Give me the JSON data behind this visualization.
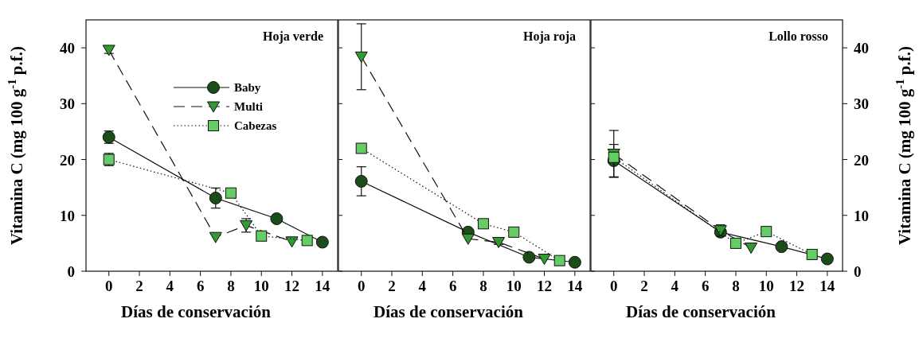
{
  "chart_data": [
    {
      "type": "line",
      "title": "Hoja verde",
      "xlabel": "Días de conservación",
      "ylabel": "Vitamina C (mg 100 g$^{-1}$ p.f.)",
      "xlim": [
        -1.5,
        15
      ],
      "xticks": [
        0,
        2,
        4,
        6,
        8,
        10,
        12,
        14
      ],
      "ylim": [
        0,
        45
      ],
      "yticks": [
        0,
        10,
        20,
        30,
        40
      ],
      "legend": "top",
      "series": [
        {
          "name": "Baby",
          "color": "#1b4d1b",
          "marker": "circle",
          "line_style": "solid",
          "x": [
            0,
            7,
            11,
            14
          ],
          "values": [
            24.0,
            13.1,
            9.4,
            5.2
          ],
          "errors": [
            1.1,
            1.8,
            null,
            null
          ]
        },
        {
          "name": "Multi",
          "color": "#339933",
          "marker": "triangle",
          "line_style": "dashed",
          "x": [
            0,
            7,
            9,
            12
          ],
          "values": [
            39.6,
            6.1,
            8.2,
            5.3
          ],
          "errors": [
            0.6,
            null,
            1.2,
            null
          ]
        },
        {
          "name": "Cabezas",
          "color": "#66cc66",
          "marker": "square",
          "line_style": "dotted",
          "x": [
            0,
            8,
            10,
            13
          ],
          "values": [
            20.0,
            14.0,
            6.3,
            5.5
          ],
          "errors": [
            1.1,
            0.6,
            null,
            0.6
          ]
        }
      ]
    },
    {
      "type": "line",
      "title": "Hoja roja",
      "xlabel": "Días de conservación",
      "xlim": [
        -1.5,
        15
      ],
      "xticks": [
        0,
        2,
        4,
        6,
        8,
        10,
        12,
        14
      ],
      "ylim": [
        0,
        45
      ],
      "yticks": [
        0,
        10,
        20,
        30,
        40
      ],
      "tick_labels": "x",
      "series": [
        {
          "color": "#1b4d1b",
          "marker": "circle",
          "line_style": "solid",
          "x": [
            0,
            7,
            11,
            14
          ],
          "values": [
            16.1,
            7.0,
            2.5,
            1.6
          ],
          "errors": [
            2.6,
            null,
            null,
            null
          ]
        },
        {
          "color": "#339933",
          "marker": "triangle",
          "line_style": "dashed",
          "x": [
            0,
            7,
            9,
            12
          ],
          "values": [
            38.4,
            5.8,
            5.2,
            2.2
          ],
          "errors": [
            5.9,
            null,
            0.4,
            null
          ]
        },
        {
          "color": "#66cc66",
          "marker": "square",
          "line_style": "dotted",
          "x": [
            0,
            8,
            10,
            13
          ],
          "values": [
            22.0,
            8.5,
            7.0,
            1.9
          ]
        }
      ]
    },
    {
      "type": "line",
      "title": "Lollo rosso",
      "xlabel": "Días de conservación",
      "y2label": "Vitamina C (mg 100 g$^{-1}$ p.f.)",
      "xlim": [
        -1.5,
        15
      ],
      "xticks": [
        0,
        2,
        4,
        6,
        8,
        10,
        12,
        14
      ],
      "y2lim": [
        0,
        45
      ],
      "y2ticks": [
        0,
        10,
        20,
        30,
        40
      ],
      "series": [
        {
          "color": "#1b4d1b",
          "marker": "circle",
          "line_style": "solid",
          "axis": "y2",
          "x": [
            0,
            7,
            11,
            14
          ],
          "values": [
            19.8,
            7.0,
            4.4,
            2.2
          ],
          "errors": [
            2.9,
            0.5,
            null,
            null
          ]
        },
        {
          "color": "#339933",
          "marker": "triangle",
          "line_style": "dashed",
          "axis": "y2",
          "x": [
            0,
            7,
            9
          ],
          "values": [
            21.0,
            7.3,
            4.2
          ],
          "errors": [
            4.2,
            1.0,
            null
          ]
        },
        {
          "color": "#66cc66",
          "marker": "square",
          "line_style": "dotted",
          "axis": "y2",
          "x": [
            0,
            8,
            10,
            13
          ],
          "values": [
            20.4,
            5.0,
            7.1,
            3.0
          ]
        }
      ]
    }
  ]
}
